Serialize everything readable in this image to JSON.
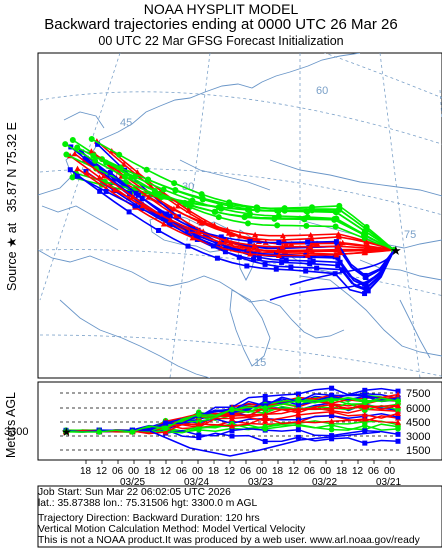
{
  "header": {
    "line1": "NOAA HYSPLIT MODEL",
    "line2": "Backward trajectories ending at 0000 UTC 26 Mar 26",
    "line3": "00 UTC 22 Mar    GFSG  Forecast Initialization"
  },
  "map": {
    "source_label": "Source ★ at",
    "source_coords": "35.87 N   75.32 E",
    "lat_labels": [
      "60",
      "45",
      "30",
      "15"
    ],
    "lon_labels": [
      "75"
    ],
    "colors": {
      "red": "#ff0000",
      "blue": "#0000ff",
      "green": "#00ee00",
      "coast": "#6a96c8",
      "grid": "#7aa0c8"
    }
  },
  "vertical": {
    "axis_label": "Meters AGL",
    "start_height": "3300",
    "right_ticks": [
      "7500",
      "6000",
      "4500",
      "3000",
      "1500"
    ],
    "hour_ticks": [
      "18",
      "12",
      "06",
      "00",
      "18",
      "12",
      "06",
      "00",
      "18",
      "12",
      "06",
      "00",
      "18",
      "12",
      "06",
      "00",
      "18",
      "12",
      "06",
      "00"
    ],
    "date_ticks": [
      "03/25",
      "03/24",
      "03/23",
      "03/22",
      "03/21"
    ]
  },
  "footer": {
    "line1": "Job Start: Sun Mar 22 06:02:05 UTC 2026",
    "line2": "lat.: 35.87388   lon.: 75.31506   hgt: 3300.0 m AGL",
    "line3": "Trajectory Direction: Backward        Duration: 120 hrs",
    "line4": "Vertical Motion Calculation Method: Model Vertical Velocity",
    "line5": "This is not a NOAA product.It was produced by a web user. www.arl.noaa.gov/ready"
  }
}
